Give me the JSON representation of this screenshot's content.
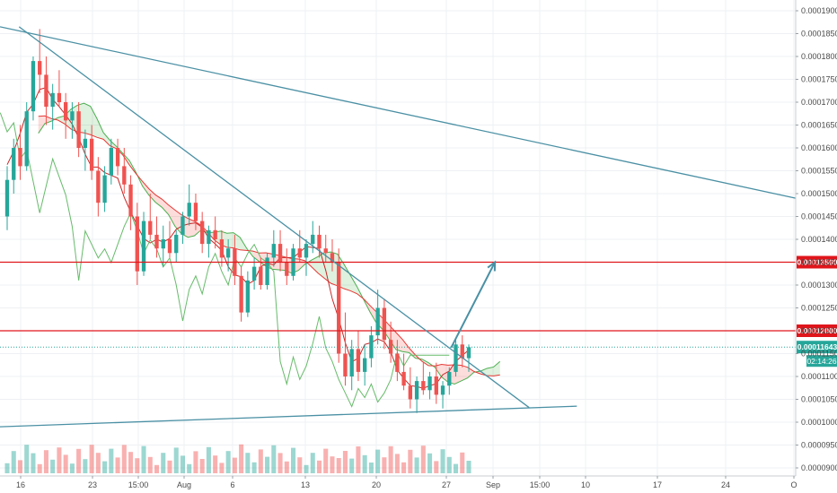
{
  "chart_data": {
    "type": "candlestick",
    "title": "",
    "xlabel": "",
    "ylabel": "",
    "ylim": [
      8.9e-05,
      0.000191
    ],
    "grid": true,
    "x_tick_labels": [
      "16",
      "23",
      "15:00",
      "Aug",
      "6",
      "13",
      "20",
      "27",
      "Sep",
      "15:00",
      "10",
      "17",
      "24",
      "O"
    ],
    "y_tick_labels": [
      "0.00019000",
      "0.00018500",
      "0.00018000",
      "0.00017500",
      "0.00017000",
      "0.00016500",
      "0.00016000",
      "0.00015500",
      "0.00015000",
      "0.00014500",
      "0.00014000",
      "0.00013500",
      "0.00013000",
      "0.00012500",
      "0.00012000",
      "0.00011500",
      "0.00011000",
      "0.00010500",
      "0.00010000",
      "0.00009500",
      "0.00009000"
    ],
    "y_tick_values": [
      0.00019,
      0.000185,
      0.00018,
      0.000175,
      0.00017,
      0.000165,
      0.00016,
      0.000155,
      0.00015,
      0.000145,
      0.00014,
      0.000135,
      0.00013,
      0.000125,
      0.00012,
      0.000115,
      0.00011,
      0.000105,
      0.0001,
      9.5e-05,
      9e-05
    ],
    "horizontal_levels": [
      {
        "value": 0.000135,
        "label": "0.00013500",
        "color": "#e0151b"
      },
      {
        "value": 0.00012,
        "label": "0.00012000",
        "color": "#e0151b"
      }
    ],
    "current_price": {
      "value": 0.00011643,
      "label": "0.00011643",
      "countdown": "02:14:26",
      "color": "#26a69a"
    },
    "trendlines": [
      {
        "name": "upper resistance",
        "from": [
          0,
          0.0001865
        ],
        "to": [
          1,
          0.000149
        ],
        "color": "#4a90a4"
      },
      {
        "name": "inner resistance",
        "from": [
          0.024,
          0.0001865
        ],
        "to": [
          0.665,
          0.0001032
        ],
        "color": "#4a90a4"
      },
      {
        "name": "support",
        "from": [
          0,
          9.9e-05
        ],
        "to": [
          0.725,
          0.0001035
        ],
        "color": "#4a90a4"
      }
    ],
    "projection_arrow": {
      "from": [
        0.567,
        0.0001163
      ],
      "to": [
        0.622,
        0.000135
      ],
      "color": "#4a90a4"
    },
    "candles": [
      [
        0.000145,
        0.000156,
        0.000142,
        0.000153
      ],
      [
        0.000153,
        0.000162,
        0.00015,
        0.00016
      ],
      [
        0.00016,
        0.000165,
        0.000153,
        0.000156
      ],
      [
        0.000156,
        0.00017,
        0.000155,
        0.000168
      ],
      [
        0.000168,
        0.00018,
        0.000166,
        0.000179
      ],
      [
        0.000179,
        0.000186,
        0.000172,
        0.000176
      ],
      [
        0.000176,
        0.00018,
        0.000165,
        0.000169
      ],
      [
        0.000169,
        0.000174,
        0.000164,
        0.000172
      ],
      [
        0.000172,
        0.000177,
        0.000169,
        0.00017
      ],
      [
        0.00017,
        0.000172,
        0.000162,
        0.000166
      ],
      [
        0.000166,
        0.00017,
        0.000162,
        0.000168
      ],
      [
        0.000168,
        0.00017,
        0.000158,
        0.00016
      ],
      [
        0.00016,
        0.000164,
        0.000155,
        0.000162
      ],
      [
        0.000162,
        0.000165,
        0.000153,
        0.000155
      ],
      [
        0.000155,
        0.000158,
        0.000145,
        0.000148
      ],
      [
        0.000148,
        0.000156,
        0.000146,
        0.000154
      ],
      [
        0.000154,
        0.000162,
        0.000152,
        0.00016
      ],
      [
        0.00016,
        0.000162,
        0.000154,
        0.000156
      ],
      [
        0.000156,
        0.00016,
        0.00015,
        0.000152
      ],
      [
        0.000152,
        0.000154,
        0.000142,
        0.000145
      ],
      [
        0.000145,
        0.000148,
        0.00013,
        0.000133
      ],
      [
        0.000133,
        0.000146,
        0.000132,
        0.000144
      ],
      [
        0.000144,
        0.00015,
        0.00014,
        0.000141
      ],
      [
        0.000141,
        0.000145,
        0.000136,
        0.000138
      ],
      [
        0.000138,
        0.000143,
        0.000134,
        0.00014
      ],
      [
        0.00014,
        0.000144,
        0.000136,
        0.000137
      ],
      [
        0.000137,
        0.000142,
        0.000135,
        0.000141
      ],
      [
        0.000141,
        0.000146,
        0.000139,
        0.000145
      ],
      [
        0.000145,
        0.000152,
        0.000143,
        0.000148
      ],
      [
        0.000148,
        0.00015,
        0.000142,
        0.000144
      ],
      [
        0.000144,
        0.000146,
        0.000137,
        0.000139
      ],
      [
        0.000139,
        0.000143,
        0.000136,
        0.000142
      ],
      [
        0.000142,
        0.000145,
        0.000138,
        0.00014
      ],
      [
        0.00014,
        0.000142,
        0.000134,
        0.000136
      ],
      [
        0.000136,
        0.00014,
        0.000133,
        0.000138
      ],
      [
        0.000138,
        0.000141,
        0.00013,
        0.000132
      ],
      [
        0.000132,
        0.000134,
        0.000122,
        0.000124
      ],
      [
        0.000124,
        0.000133,
        0.000123,
        0.000131
      ],
      [
        0.000131,
        0.000136,
        0.000129,
        0.000134
      ],
      [
        0.000134,
        0.000136,
        0.000129,
        0.00013
      ],
      [
        0.00013,
        0.000137,
        0.000129,
        0.000136
      ],
      [
        0.000136,
        0.000142,
        0.000134,
        0.000139
      ],
      [
        0.000139,
        0.000142,
        0.000133,
        0.000135
      ],
      [
        0.000135,
        0.000138,
        0.00013,
        0.000132
      ],
      [
        0.000132,
        0.000139,
        0.000131,
        0.000138
      ],
      [
        0.000138,
        0.000142,
        0.000135,
        0.000136
      ],
      [
        0.000136,
        0.00014,
        0.000132,
        0.000139
      ],
      [
        0.000139,
        0.000144,
        0.000137,
        0.000141
      ],
      [
        0.000141,
        0.000143,
        0.000136,
        0.000138
      ],
      [
        0.000138,
        0.000141,
        0.000135,
        0.000137
      ],
      [
        0.000137,
        0.00014,
        0.000133,
        0.000135
      ],
      [
        0.000135,
        0.000138,
        0.000113,
        0.000115
      ],
      [
        0.000115,
        0.000124,
        0.000108,
        0.00011
      ],
      [
        0.00011,
        0.000118,
        0.000107,
        0.000116
      ],
      [
        0.000116,
        0.00012,
        0.000109,
        0.000111
      ],
      [
        0.000111,
        0.000117,
        0.000108,
        0.000114
      ],
      [
        0.000114,
        0.000121,
        0.000112,
        0.000119
      ],
      [
        0.000119,
        0.000129,
        0.000117,
        0.000125
      ],
      [
        0.000125,
        0.000127,
        0.000116,
        0.000118
      ],
      [
        0.000118,
        0.000122,
        0.000113,
        0.000115
      ],
      [
        0.000115,
        0.000118,
        0.000109,
        0.000111
      ],
      [
        0.000111,
        0.000115,
        0.000107,
        0.000108
      ],
      [
        0.000108,
        0.000112,
        0.000103,
        0.000105
      ],
      [
        0.000105,
        0.00011,
        0.000102,
        0.000109
      ],
      [
        0.000109,
        0.000113,
        0.000106,
        0.000107
      ],
      [
        0.000107,
        0.000111,
        0.000105,
        0.00011
      ],
      [
        0.00011,
        0.000113,
        0.000104,
        0.000106
      ],
      [
        0.000106,
        0.000109,
        0.000103,
        0.000108
      ],
      [
        0.000108,
        0.000112,
        0.000106,
        0.000111
      ],
      [
        0.000111,
        0.000118,
        0.00011,
        0.000117
      ],
      [
        0.000117,
        0.000119,
        0.000112,
        0.000114
      ],
      [
        0.000114,
        0.000117,
        0.000111,
        0.0001164
      ]
    ],
    "volume_range": [
      0,
      1
    ]
  }
}
